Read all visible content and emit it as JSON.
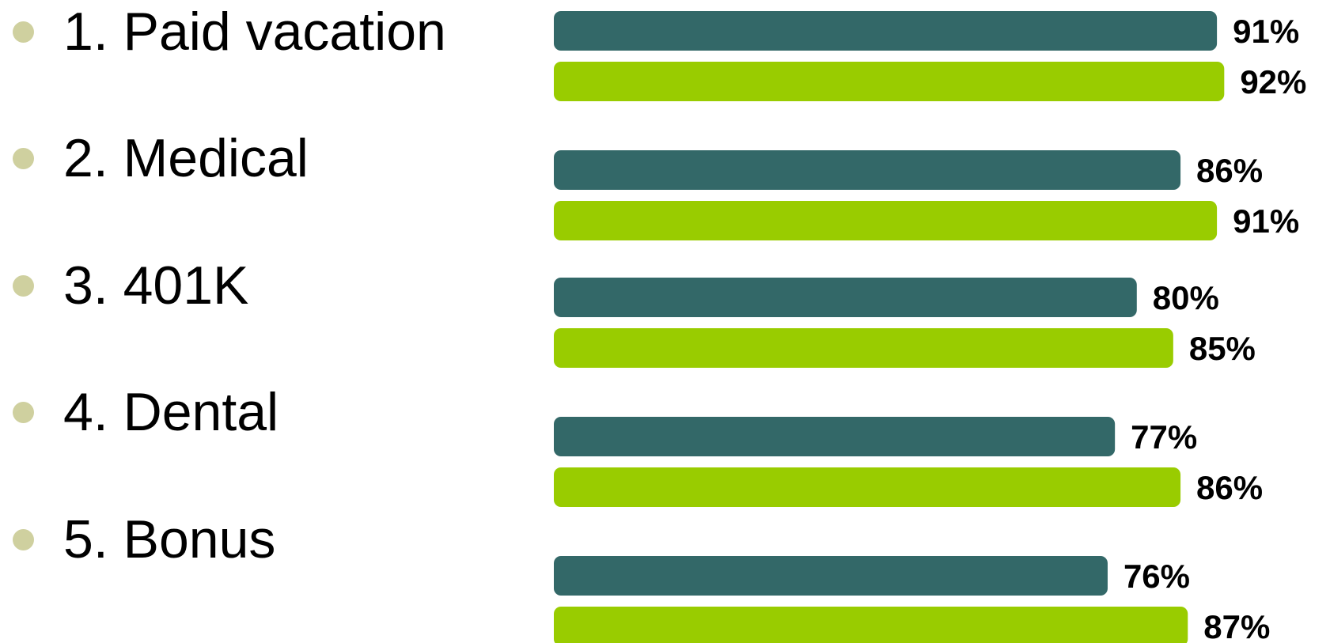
{
  "chart_data": {
    "type": "bar",
    "orientation": "horizontal",
    "categories": [
      "1. Paid vacation",
      "2. Medical",
      "3. 401K",
      "4. Dental",
      "5. Bonus"
    ],
    "series": [
      {
        "values": [
          91,
          86,
          80,
          77,
          76
        ],
        "color": "#336868"
      },
      {
        "values": [
          92,
          91,
          85,
          86,
          87
        ],
        "color": "#99cc00"
      }
    ],
    "data_labels": [
      [
        "91%",
        "86%",
        "80%",
        "77%",
        "76%"
      ],
      [
        "92%",
        "91%",
        "85%",
        "86%",
        "87%"
      ]
    ],
    "xlim": [
      0,
      100
    ],
    "grid": false,
    "legend": "none",
    "bullet_color": "#cfd09f"
  }
}
